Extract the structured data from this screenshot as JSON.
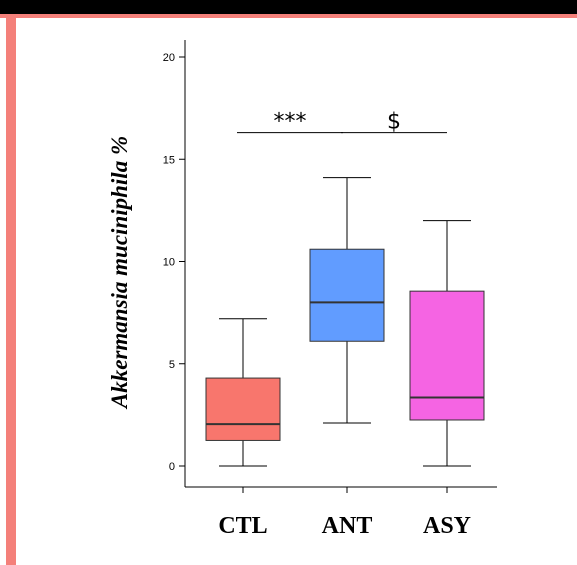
{
  "colors": {
    "frame_accent": "#f4807a",
    "frame_dark": "#000000"
  },
  "chart_data": {
    "type": "box",
    "title": "",
    "xlabel": "",
    "ylabel": "Akkermansia muciniphila %",
    "ylim": [
      0,
      20
    ],
    "yticks": [
      0,
      5,
      10,
      15,
      20
    ],
    "grid": false,
    "categories": [
      "CTL",
      "ANT",
      "ASY"
    ],
    "series": [
      {
        "category": "CTL",
        "color": "#f8766d",
        "min": 0,
        "q1": 1.25,
        "median": 2.05,
        "q3": 4.3,
        "max": 7.2
      },
      {
        "category": "ANT",
        "color": "#619cff",
        "min": 2.1,
        "q1": 6.1,
        "median": 8.0,
        "q3": 10.6,
        "max": 14.1
      },
      {
        "category": "ASY",
        "color": "#f564e3",
        "min": 0,
        "q1": 2.25,
        "median": 3.35,
        "q3": 8.55,
        "max": 12.0
      }
    ],
    "annotations": [
      {
        "text": "***",
        "from": "CTL",
        "to": "ANT",
        "y": 16.3
      },
      {
        "text": "$",
        "from": "ANT",
        "to": "ASY",
        "y": 16.3
      }
    ]
  }
}
